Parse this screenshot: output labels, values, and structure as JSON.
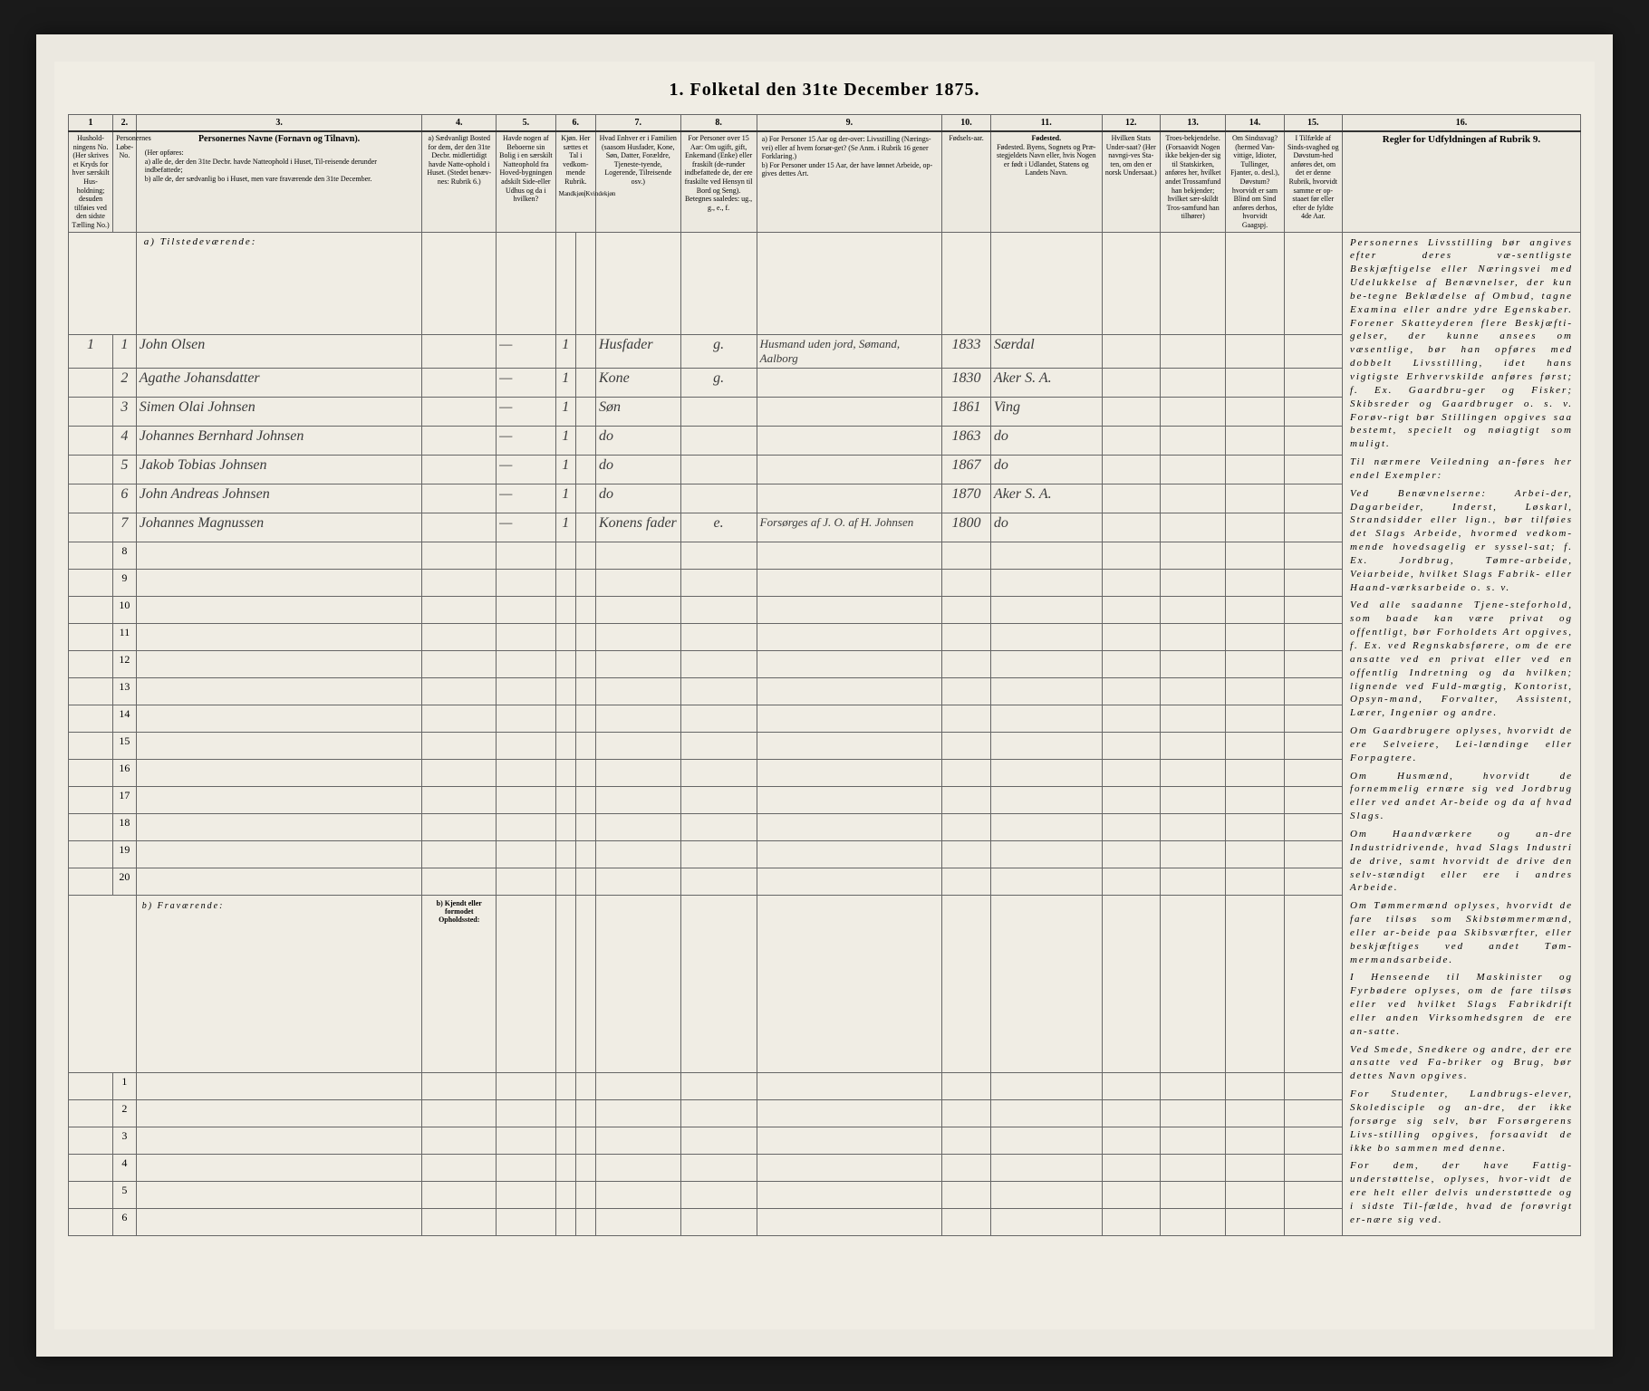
{
  "title": "1. Folketal den 31te December 1875.",
  "column_numbers": [
    "1",
    "2.",
    "3.",
    "4.",
    "5.",
    "6.",
    "7.",
    "8.",
    "9.",
    "10.",
    "11.",
    "12.",
    "13.",
    "14.",
    "15.",
    "16."
  ],
  "headers": {
    "c1": "Hushold-ningens No. (Her skrives et Kryds for hver særskilt Hus-holdning; desuden tilføies ved den sidste Tælling No.)",
    "c2": "Personernes Løbe-No.",
    "c3_title": "Personernes Navne (Fornavn og Tilnavn).",
    "c3_sub": "(Her opføres:\na) alle de, der den 31te Decbr. havde Natteophold i Huset, Til-reisende derunder indbefattede;\nb) alle de, der sædvanlig bo i Huset, men vare fraværende den 31te December.",
    "c4": "a) Sædvanligt Bosted for dem, der den 31te Decbr. midlertidigt havde Natte-ophold i Huset. (Stedet benæv-nes: Rubrik 6.)",
    "c5": "Havde nogen af Beboerne sin Bolig i en særskilt Natteophold fra Hoved-bygningen adskilt Side-eller Udhus og da i hvilken?",
    "c6": "Kjøn. Her sættes et Tal i vedkom-mende Rubrik.",
    "c7": "Hvad Enhver er i Familien (saasom Husfader, Kone, Søn, Datter, Forældre, Tjeneste-tyende, Logerende, Tilreisende osv.)",
    "c8": "For Personer over 15 Aar: Om ugift, gift, Enkemand (Enke) eller fraskilt (de-runder indbefattede de, der ere fraskilte ved Hensyn til Bord og Seng). Betegnes saaledes: ug., g., e., f.",
    "c9": "a) For Personer 15 Aar og der-over: Livsstilling (Nærings-vei) eller af hvem forsør-get? (Se Anm. i Rubrik 16 gener Forklaring.)\nb) For Personer under 15 Aar, der have lønnet Arbeide, op-gives dettes Art.",
    "c10": "Fødsels-aar.",
    "c11": "Fødested. Byens, Sognets og Præ-stegjeldets Navn eller, hvis Nogen er født i Udlandet, Statens og Landets Navn.",
    "c12": "Hvilken Stats Under-saat? (Her navngi-ves Sta-ten, om den er norsk Undersaat.)",
    "c13": "Troes-bekjendelse. (Forsaavidt Nogen ikke bekjen-der sig til Statskirken, anføres her, hvilket andet Trossamfund han bekjender; hvilket sær-skildt Tros-samfund han tilhører)",
    "c14": "Om Sindssvag? (hermed Van-vittige, Idioter, Tullinger, Fjanter, o. desl.), Døvstum? hvorvidt er sam Blind om Sind anføres derhos, hvorvidt Gaagspj.",
    "c15": "I Tilfælde af Sinds-svaghed og Døvstum-hed anføres det, om det er denne Rubrik, hvorvidt samme er op-staaet før eller efter de fyldte 4de Aar.",
    "c16": "Regler for Udfyldningen af Rubrik 9."
  },
  "section_a": "a) Tilstedeværende:",
  "section_b": "b) Fraværende:",
  "section_b_col4": "b) Kjendt eller formodet Opholdssted:",
  "persons": [
    {
      "num": "1",
      "pnum": "1",
      "name": "John Olsen",
      "c5": "",
      "c6": "1",
      "c7": "Husfader",
      "c8": "g.",
      "c9": "Husmand uden jord, Sømand, Aalborg",
      "c10": "1833",
      "c11": "Særdal"
    },
    {
      "num": "",
      "pnum": "2",
      "name": "Agathe Johansdatter",
      "c5": "",
      "c6": "1",
      "c7": "Kone",
      "c8": "g.",
      "c9": "",
      "c10": "1830",
      "c11": "Aker S. A."
    },
    {
      "num": "",
      "pnum": "3",
      "name": "Simen Olai Johnsen",
      "c5": "",
      "c6": "1",
      "c7": "Søn",
      "c8": "",
      "c9": "",
      "c10": "1861",
      "c11": "Ving"
    },
    {
      "num": "",
      "pnum": "4",
      "name": "Johannes Bernhard Johnsen",
      "c5": "",
      "c6": "1",
      "c7": "do",
      "c8": "",
      "c9": "",
      "c10": "1863",
      "c11": "do"
    },
    {
      "num": "",
      "pnum": "5",
      "name": "Jakob Tobias Johnsen",
      "c5": "",
      "c6": "1",
      "c7": "do",
      "c8": "",
      "c9": "",
      "c10": "1867",
      "c11": "do"
    },
    {
      "num": "",
      "pnum": "6",
      "name": "John Andreas Johnsen",
      "c5": "",
      "c6": "1",
      "c7": "do",
      "c8": "",
      "c9": "",
      "c10": "1870",
      "c11": "Aker S. A."
    },
    {
      "num": "",
      "pnum": "7",
      "name": "Johannes Magnussen",
      "c5": "",
      "c6": "1",
      "c7": "Konens fader",
      "c8": "e.",
      "c9": "Forsørges af J. O. af H. Johnsen",
      "c10": "1800",
      "c11": "do"
    }
  ],
  "empty_present_rows": [
    "8",
    "9",
    "10",
    "11",
    "12",
    "13",
    "14",
    "15",
    "16",
    "17",
    "18",
    "19",
    "20"
  ],
  "empty_absent_rows": [
    "1",
    "2",
    "3",
    "4",
    "5",
    "6"
  ],
  "instructions_title": "Personernes Livsstilling",
  "instructions_paragraphs": [
    "Personernes Livsstilling bør angives efter deres væ-sentligste Beskjæftigelse eller Næringsvei med Udelukkelse af Benævnelser, der kun be-tegne Beklædelse af Ombud, tagne Examina eller andre ydre Egenskaber. Forener Skatteyderen flere Beskjæfti-gelser, der kunne ansees om væsentlige, bør han opføres med dobbelt Livsstilling, idet hans vigtigste Erhvervskilde anføres først; f. Ex. Gaardbru-ger og Fisker; Skibsreder og Gaardbruger o. s. v. Forøv-rigt bør Stillingen opgives saa bestemt, specielt og nøiagtigt som muligt.",
    "Til nærmere Veiledning an-føres her endel Exempler:",
    "Ved Benævnelserne: Arbei-der, Dagarbeider, Inderst, Løskarl, Strandsidder eller lign., bør tilføies det Slags Arbeide, hvormed vedkom-mende hovedsagelig er syssel-sat; f. Ex. Jordbrug, Tømre-arbeide, Veiarbeide, hvilket Slags Fabrik- eller Haand-værksarbeide o. s. v.",
    "Ved alle saadanne Tjene-steforhold, som baade kan være privat og offentligt, bør Forholdets Art opgives, f. Ex. ved Regnskabsførere, om de ere ansatte ved en privat eller ved en offentlig Indretning og da hvilken; lignende ved Fuld-mægtig, Kontorist, Opsyn-mand, Forvalter, Assistent, Lærer, Ingeniør og andre.",
    "Om Gaardbrugere oplyses, hvorvidt de ere Selveiere, Lei-lændinge eller Forpagtere.",
    "Om Husmænd, hvorvidt de fornemmelig ernære sig ved Jordbrug eller ved andet Ar-beide og da af hvad Slags.",
    "Om Haandværkere og an-dre Industridrivende, hvad Slags Industri de drive, samt hvorvidt de drive den selv-stændigt eller ere i andres Arbeide.",
    "Om Tømmermænd oplyses, hvorvidt de fare tilsøs som Skibstømmermænd, eller ar-beide paa Skibsværfter, eller beskjæftiges ved andet Tøm-mermandsarbeide.",
    "I Henseende til Maskinister og Fyrbødere oplyses, om de fare tilsøs eller ved hvilket Slags Fabrikdrift eller anden Virksomhedsgren de ere an-satte.",
    "Ved Smede, Snedkere og andre, der ere ansatte ved Fa-briker og Brug, bør dettes Navn opgives.",
    "For Studenter, Landbrugs-elever, Skoledisciple og an-dre, der ikke forsørge sig selv, bør Forsørgerens Livs-stilling opgives, forsaavidt de ikke bo sammen med denne.",
    "For dem, der have Fattig-understøttelse, oplyses, hvor-vidt de ere helt eller delvis understøttede og i sidste Til-fælde, hvad de forøvrigt er-nære sig ved."
  ],
  "colors": {
    "page_bg": "#f0ede4",
    "border": "#666666",
    "handwriting": "#3a3a3a"
  }
}
